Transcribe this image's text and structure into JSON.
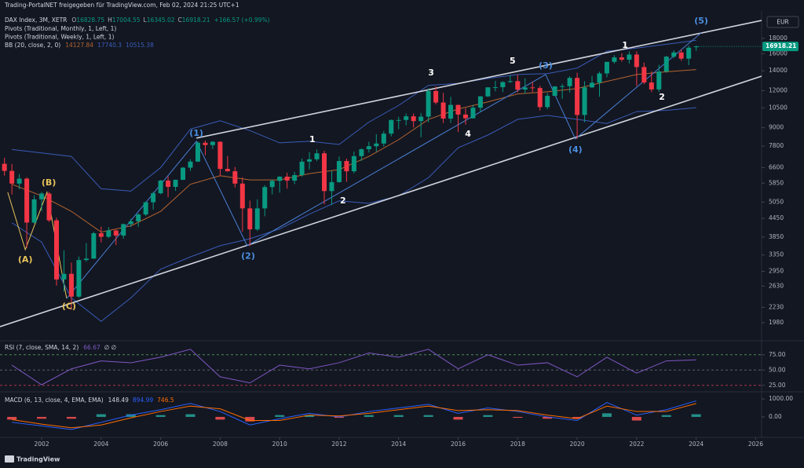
{
  "header": "Trading-PortalNET freigegeben für TradingView.com, Feb 02, 2024 21:25 UTC+1",
  "currency": "EUR",
  "branding": "TradingView",
  "chart_data": [
    {
      "type": "candlestick",
      "title": "DAX Index, 3M, XETR",
      "ohlc_labels": [
        "O",
        "H",
        "L",
        "C"
      ],
      "change": "+166.57 (+0.99%)",
      "indicators": [
        "Pivots (Traditional, Monthly, 1, Left, 1)",
        "Pivots (Traditional, Weekly, 1, Left, 1)"
      ],
      "log_scale": true,
      "grid": false,
      "up_color": "#089981",
      "down_color": "#f23645",
      "xlim": [
        2000.6,
        2026.2
      ],
      "xticks": [
        2002,
        2004,
        2006,
        2008,
        2010,
        2012,
        2014,
        2016,
        2018,
        2020,
        2022,
        2024,
        2026
      ],
      "ylim": [
        1741,
        21740
      ],
      "yticks": [
        1980,
        2230,
        2630,
        2950,
        3350,
        3850,
        4450,
        5050,
        5850,
        6600,
        7800,
        9000,
        10500,
        12000,
        14000,
        16000,
        18000
      ],
      "x": [
        2000.75,
        2001,
        2001.25,
        2001.5,
        2001.75,
        2002,
        2002.25,
        2002.5,
        2002.75,
        2003,
        2003.25,
        2003.5,
        2003.75,
        2004,
        2004.25,
        2004.5,
        2004.75,
        2005,
        2005.25,
        2005.5,
        2005.75,
        2006,
        2006.25,
        2006.5,
        2006.75,
        2007,
        2007.25,
        2007.5,
        2007.75,
        2008,
        2008.25,
        2008.5,
        2008.75,
        2009,
        2009.25,
        2009.5,
        2009.75,
        2010,
        2010.25,
        2010.5,
        2010.75,
        2011,
        2011.25,
        2011.5,
        2011.75,
        2012,
        2012.25,
        2012.5,
        2012.75,
        2013,
        2013.25,
        2013.5,
        2013.75,
        2014,
        2014.25,
        2014.5,
        2014.75,
        2015,
        2015.25,
        2015.5,
        2015.75,
        2016,
        2016.25,
        2016.5,
        2016.75,
        2017,
        2017.25,
        2017.5,
        2017.75,
        2018,
        2018.25,
        2018.5,
        2018.75,
        2019,
        2019.25,
        2019.5,
        2019.75,
        2020,
        2020.25,
        2020.5,
        2020.75,
        2021,
        2021.25,
        2021.5,
        2021.75,
        2022,
        2022.25,
        2022.5,
        2022.75,
        2023,
        2023.25,
        2023.5,
        2023.75,
        2024
      ],
      "open": [
        6800,
        6434,
        5830,
        6058,
        4308,
        5160,
        5397,
        4383,
        2769,
        2893,
        2424,
        3221,
        3257,
        3965,
        3857,
        4052,
        3893,
        4256,
        4349,
        4587,
        5044,
        5408,
        5970,
        5683,
        6004,
        6597,
        6917,
        8007,
        7862,
        8067,
        6535,
        6418,
        5831,
        4810,
        4085,
        4809,
        5675,
        5957,
        6154,
        5966,
        6229,
        6914,
        7041,
        7376,
        5502,
        5898,
        6947,
        6416,
        7216,
        7612,
        7795,
        7959,
        8594,
        9552,
        9556,
        9833,
        9474,
        9806,
        11966,
        10945,
        9660,
        10743,
        9965,
        9680,
        10511,
        11481,
        12313,
        12325,
        12829,
        12918,
        12097,
        12306,
        12247,
        10559,
        11526,
        12399,
        12428,
        13249,
        9936,
        12311,
        12761,
        13719,
        15008,
        15531,
        15261,
        15885,
        14415,
        12784,
        12114,
        13924,
        15629,
        16148,
        15387,
        16828.75
      ],
      "high": [
        7120,
        6795,
        6276,
        6126,
        5327,
        5467,
        5469,
        4474,
        3476,
        3157,
        3308,
        3676,
        4010,
        4176,
        4157,
        4069,
        4272,
        4437,
        4628,
        5066,
        5469,
        6000,
        6163,
        6015,
        6629,
        7040,
        8090,
        8152,
        8106,
        8100,
        7231,
        6634,
        6120,
        5111,
        5160,
        5761,
        6026,
        6168,
        6341,
        6386,
        7087,
        7441,
        7600,
        7528,
        6430,
        7194,
        7079,
        7478,
        7672,
        8074,
        8558,
        8770,
        9594,
        9794,
        10051,
        10050,
        10093,
        12219,
        12391,
        11802,
        11430,
        10743,
        10474,
        10752,
        11482,
        12313,
        12951,
        12907,
        13526,
        13597,
        13205,
        12887,
        12460,
        11788,
        12436,
        12656,
        13425,
        13795,
        12913,
        13460,
        13903,
        15008,
        15803,
        16030,
        16290,
        16285,
        14925,
        13948,
        14676,
        15706,
        16427,
        16529,
        17003,
        17004.55
      ],
      "low": [
        6200,
        5355,
        5580,
        3540,
        4279,
        4706,
        4330,
        2642,
        2519,
        2188,
        2402,
        3181,
        3248,
        3692,
        3817,
        3618,
        3800,
        4162,
        4167,
        4533,
        4767,
        5372,
        5243,
        5510,
        5992,
        6437,
        6894,
        7264,
        7632,
        6167,
        6399,
        5660,
        4014,
        3588,
        4038,
        4524,
        5361,
        5433,
        5607,
        5809,
        6157,
        6513,
        6941,
        4965,
        4934,
        5870,
        5914,
        6310,
        6950,
        7418,
        7459,
        7775,
        8411,
        8891,
        9165,
        9009,
        8355,
        9382,
        10789,
        9325,
        9338,
        8699,
        9214,
        9679,
        10175,
        11417,
        11935,
        11868,
        12760,
        11831,
        11726,
        11865,
        10279,
        10386,
        11500,
        11266,
        11838,
        8256,
        9392,
        12253,
        11450,
        13311,
        14804,
        15024,
        14819,
        12439,
        12618,
        11863,
        11869,
        13792,
        15456,
        15136,
        14630,
        16345.02
      ],
      "close": [
        6434,
        5830,
        6058,
        4308,
        5160,
        5397,
        4383,
        2769,
        2893,
        2424,
        3221,
        3257,
        3965,
        3857,
        4052,
        3893,
        4256,
        4349,
        4587,
        5044,
        5408,
        5970,
        5683,
        6004,
        6597,
        6917,
        8007,
        7862,
        8067,
        6535,
        6418,
        5831,
        4810,
        4085,
        4809,
        5675,
        5957,
        6154,
        5966,
        6229,
        6914,
        7041,
        7376,
        5502,
        5898,
        6947,
        6416,
        7216,
        7612,
        7795,
        7959,
        8594,
        9552,
        9556,
        9833,
        9474,
        9806,
        11966,
        10945,
        9660,
        10743,
        9965,
        9680,
        10511,
        11481,
        12313,
        12325,
        12829,
        12918,
        12097,
        12306,
        12247,
        10559,
        11526,
        12399,
        12428,
        13249,
        9936,
        12311,
        12761,
        13719,
        15008,
        15531,
        15261,
        15885,
        14415,
        12784,
        12114,
        13924,
        15629,
        16148,
        15387,
        16752,
        16918.21
      ],
      "bands": {
        "name": "BB (20, close, 2, 0)",
        "basis_color": "#b5642f",
        "band_color": "#3a5cb8",
        "x": [
          2001,
          2002,
          2003,
          2004,
          2005,
          2006,
          2007,
          2008,
          2009,
          2010,
          2011,
          2012,
          2013,
          2014,
          2015,
          2016,
          2017,
          2018,
          2019,
          2020,
          2021,
          2022,
          2023,
          2024
        ],
        "basis": [
          5800,
          5300,
          4700,
          4000,
          4200,
          4700,
          5800,
          6200,
          6000,
          6000,
          6300,
          6500,
          7200,
          8200,
          9600,
          10400,
          11000,
          11700,
          11900,
          12200,
          12900,
          13600,
          13900,
          14127.84
        ],
        "upper": [
          7600,
          7400,
          7200,
          5600,
          5500,
          6600,
          8900,
          9500,
          8800,
          8000,
          8100,
          7900,
          9400,
          10700,
          12500,
          12700,
          13200,
          13600,
          13700,
          14300,
          16300,
          16700,
          17200,
          17740.3
        ],
        "lower": [
          4300,
          3700,
          2400,
          2000,
          2400,
          3000,
          3300,
          3600,
          3800,
          4100,
          4600,
          5100,
          5000,
          5300,
          6100,
          7700,
          8500,
          9600,
          9900,
          9600,
          9300,
          10200,
          10300,
          10515.38
        ]
      },
      "trend_lines": [
        {
          "color": "#d1d4dc",
          "x": [
            2007.2,
            2026.2
          ],
          "y": [
            8300,
            20700
          ]
        },
        {
          "color": "#d1d4dc",
          "x": [
            2000.6,
            2026.2
          ],
          "y": [
            1920,
            13430
          ]
        },
        {
          "color": "#e8c35a",
          "x": [
            2000.86,
            2001.45,
            2002.18,
            2002.84
          ],
          "y": [
            5450,
            3490,
            5450,
            2390
          ]
        },
        {
          "color": "#4a7fd4",
          "x": [
            2002.84,
            2007.2,
            2008.91,
            2018.94,
            2019.94,
            2024.17
          ],
          "y": [
            2390,
            8100,
            3600,
            13600,
            8250,
            18790
          ]
        }
      ],
      "annotations": [
        {
          "text": "(A)",
          "x": 2001.45,
          "y": 3220,
          "color": "#e8c35a"
        },
        {
          "text": "(B)",
          "x": 2002.24,
          "y": 5860,
          "color": "#e8c35a"
        },
        {
          "text": "(C)",
          "x": 2002.92,
          "y": 2240,
          "color": "#e8c35a"
        },
        {
          "text": "(1)",
          "x": 2007.2,
          "y": 8610,
          "color": "#4a8ee0"
        },
        {
          "text": "(2)",
          "x": 2008.94,
          "y": 3310,
          "color": "#4a8ee0"
        },
        {
          "text": "(3)",
          "x": 2018.94,
          "y": 14540,
          "color": "#4a8ee0"
        },
        {
          "text": "(4)",
          "x": 2019.94,
          "y": 7570,
          "color": "#4a8ee0"
        },
        {
          "text": "(5)",
          "x": 2024.17,
          "y": 20600,
          "color": "#4a8ee0"
        },
        {
          "text": "1",
          "x": 2011.1,
          "y": 8200,
          "color": "#ffffff"
        },
        {
          "text": "2",
          "x": 2012.13,
          "y": 5090,
          "color": "#ffffff"
        },
        {
          "text": "3",
          "x": 2015.09,
          "y": 13770,
          "color": "#ffffff"
        },
        {
          "text": "4",
          "x": 2016.33,
          "y": 8550,
          "color": "#ffffff"
        },
        {
          "text": "5",
          "x": 2017.83,
          "y": 15080,
          "color": "#ffffff"
        },
        {
          "text": "1",
          "x": 2021.61,
          "y": 17040,
          "color": "#ffffff"
        },
        {
          "text": "2",
          "x": 2022.85,
          "y": 11400,
          "color": "#ffffff"
        }
      ]
    },
    {
      "type": "line",
      "title": "RSI (7, close, SMA, 14, 2)",
      "extra": "∅  ∅",
      "color": "#7e57c2",
      "x": [
        2001,
        2002,
        2003,
        2004,
        2005,
        2006,
        2007,
        2008,
        2009,
        2010,
        2011,
        2012,
        2013,
        2014,
        2015,
        2016,
        2017,
        2018,
        2019,
        2020,
        2021,
        2022,
        2023,
        2024
      ],
      "values": [
        58,
        26,
        52,
        65,
        62,
        71,
        84,
        39,
        29,
        58,
        52,
        62,
        78,
        71,
        84,
        52,
        75,
        58,
        62,
        39,
        71,
        45,
        65,
        66.67
      ],
      "ylim": [
        17,
        94
      ],
      "yticks": [
        {
          "value": 25,
          "label": "25.00"
        },
        {
          "value": 50,
          "label": "50.00"
        },
        {
          "value": 75,
          "label": "75.00"
        }
      ],
      "tick_line_colors": [
        "#b2364a",
        "#5d606b",
        "#4c8a55"
      ]
    },
    {
      "type": "macd",
      "title": "MACD (6, 13, close, 4, EMA, EMA)",
      "macd_color": "#2962ff",
      "signal_color": "#ff6d00",
      "hist_up_color": "#26a69a",
      "hist_down_color": "#ff5252",
      "x": [
        2001,
        2002,
        2003,
        2004,
        2005,
        2006,
        2007,
        2008,
        2009,
        2010,
        2011,
        2012,
        2013,
        2014,
        2015,
        2016,
        2017,
        2018,
        2019,
        2020,
        2021,
        2022,
        2023,
        2024
      ],
      "histogram": [
        -150,
        -100,
        -100,
        150,
        150,
        100,
        150,
        -150,
        -250,
        100,
        100,
        -50,
        100,
        100,
        100,
        -150,
        100,
        -50,
        -100,
        -100,
        200,
        -200,
        100,
        148.49
      ],
      "macd": [
        -300,
        -500,
        -700,
        -300,
        100,
        400,
        750,
        300,
        -450,
        -100,
        200,
        0,
        300,
        500,
        700,
        200,
        500,
        300,
        0,
        -200,
        800,
        100,
        400,
        894.99
      ],
      "signal": [
        -150,
        -400,
        -600,
        -450,
        -50,
        300,
        600,
        450,
        -200,
        -200,
        100,
        50,
        200,
        400,
        600,
        350,
        400,
        350,
        100,
        -100,
        600,
        300,
        300,
        746.5
      ],
      "ylim": [
        -1050,
        1350
      ],
      "yticks": [
        {
          "value": 0,
          "label": "0.00"
        },
        {
          "value": 1000,
          "label": "1000.00"
        }
      ]
    }
  ]
}
